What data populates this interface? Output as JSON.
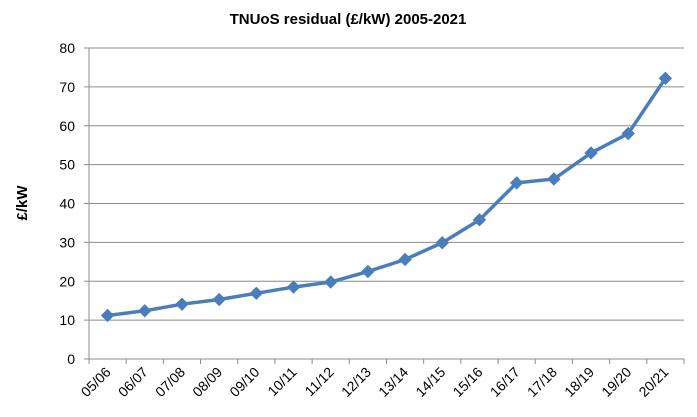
{
  "chart_data": {
    "type": "line",
    "title": "TNUoS residual (£/kW) 2005-2021",
    "xlabel": "",
    "ylabel": "£/kW",
    "ylim": [
      0,
      80
    ],
    "yticks": [
      0,
      10,
      20,
      30,
      40,
      50,
      60,
      70,
      80
    ],
    "grid": true,
    "legend": "none",
    "categories": [
      "05/06",
      "06/07",
      "07/08",
      "08/09",
      "09/10",
      "10/11",
      "11/12",
      "12/13",
      "13/14",
      "14/15",
      "15/16",
      "16/17",
      "17/18",
      "18/19",
      "19/20",
      "20/21"
    ],
    "series": [
      {
        "name": "TNUoS residual",
        "color": "#4a7ebb",
        "marker": "diamond",
        "values": [
          11.2,
          12.4,
          14.1,
          15.3,
          16.9,
          18.5,
          19.8,
          22.5,
          25.6,
          29.9,
          35.8,
          45.3,
          46.3,
          53.0,
          58.0,
          72.2
        ]
      }
    ]
  }
}
